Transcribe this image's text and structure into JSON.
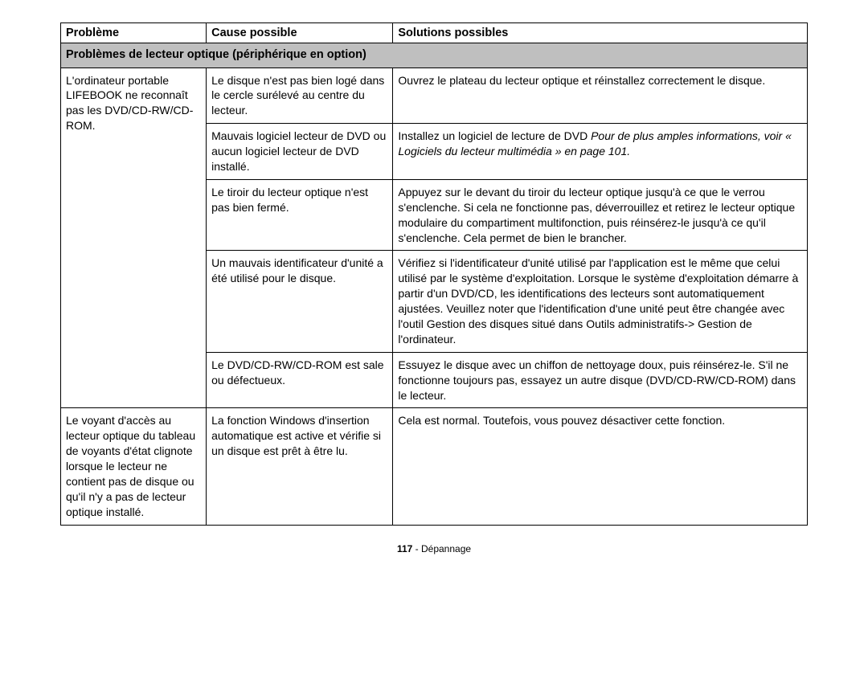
{
  "headers": {
    "col1": "Problème",
    "col2": "Cause possible",
    "col3": "Solutions possibles"
  },
  "section_title": "Problèmes de lecteur optique (périphérique en option)",
  "rows": [
    {
      "problem": "L'ordinateur portable LIFEBOOK ne reconnaît pas les DVD/CD-RW/CD-ROM.",
      "cause": "Le disque n'est pas bien logé dans le cercle surélevé au centre du lecteur.",
      "solution_plain": "Ouvrez le plateau du lecteur optique et réinstallez correctement le disque."
    },
    {
      "cause": "Mauvais logiciel lecteur de DVD ou aucun logiciel lecteur de DVD installé.",
      "solution_prefix": "Installez un logiciel de lecture de DVD ",
      "solution_italic": "Pour de plus amples informations, voir « Logiciels du lecteur multimédia » en page 101."
    },
    {
      "cause": "Le tiroir du lecteur optique n'est pas bien fermé.",
      "solution_plain": "Appuyez sur le devant du tiroir du lecteur optique jusqu'à ce que le verrou s'enclenche. Si cela ne fonctionne pas, déverrouillez et retirez le lecteur optique modulaire du compartiment multifonction, puis réinsérez-le jusqu'à ce qu'il s'enclenche. Cela permet de bien le brancher."
    },
    {
      "cause": "Un mauvais identificateur d'unité a été utilisé pour le disque.",
      "solution_plain": "Vérifiez si l'identificateur d'unité utilisé par l'application est le même que celui utilisé par le système d'exploitation. Lorsque le système d'exploitation démarre à partir d'un DVD/CD, les identifications des lecteurs sont automatiquement ajustées. Veuillez noter que l'identification d'une unité peut être changée avec l'outil Gestion des disques situé dans Outils administratifs-> Gestion de l'ordinateur."
    },
    {
      "cause": "Le DVD/CD-RW/CD-ROM est sale ou défectueux.",
      "solution_plain": "Essuyez le disque avec un chiffon de nettoyage doux, puis réinsérez-le. S'il ne fonctionne toujours pas, essayez un autre disque (DVD/CD-RW/CD-ROM) dans le lecteur."
    },
    {
      "problem": "Le voyant d'accès au lecteur optique du tableau de voyants d'état clignote lorsque le lecteur ne contient pas de disque ou qu'il n'y a pas de lecteur optique installé.",
      "cause": "La fonction Windows d'insertion automatique est active et vérifie si un disque est prêt à être lu.",
      "solution_plain": "Cela est normal. Toutefois, vous pouvez désactiver cette fonction."
    }
  ],
  "footer": {
    "page_number": "117",
    "separator": " - ",
    "section": "Dépannage"
  }
}
